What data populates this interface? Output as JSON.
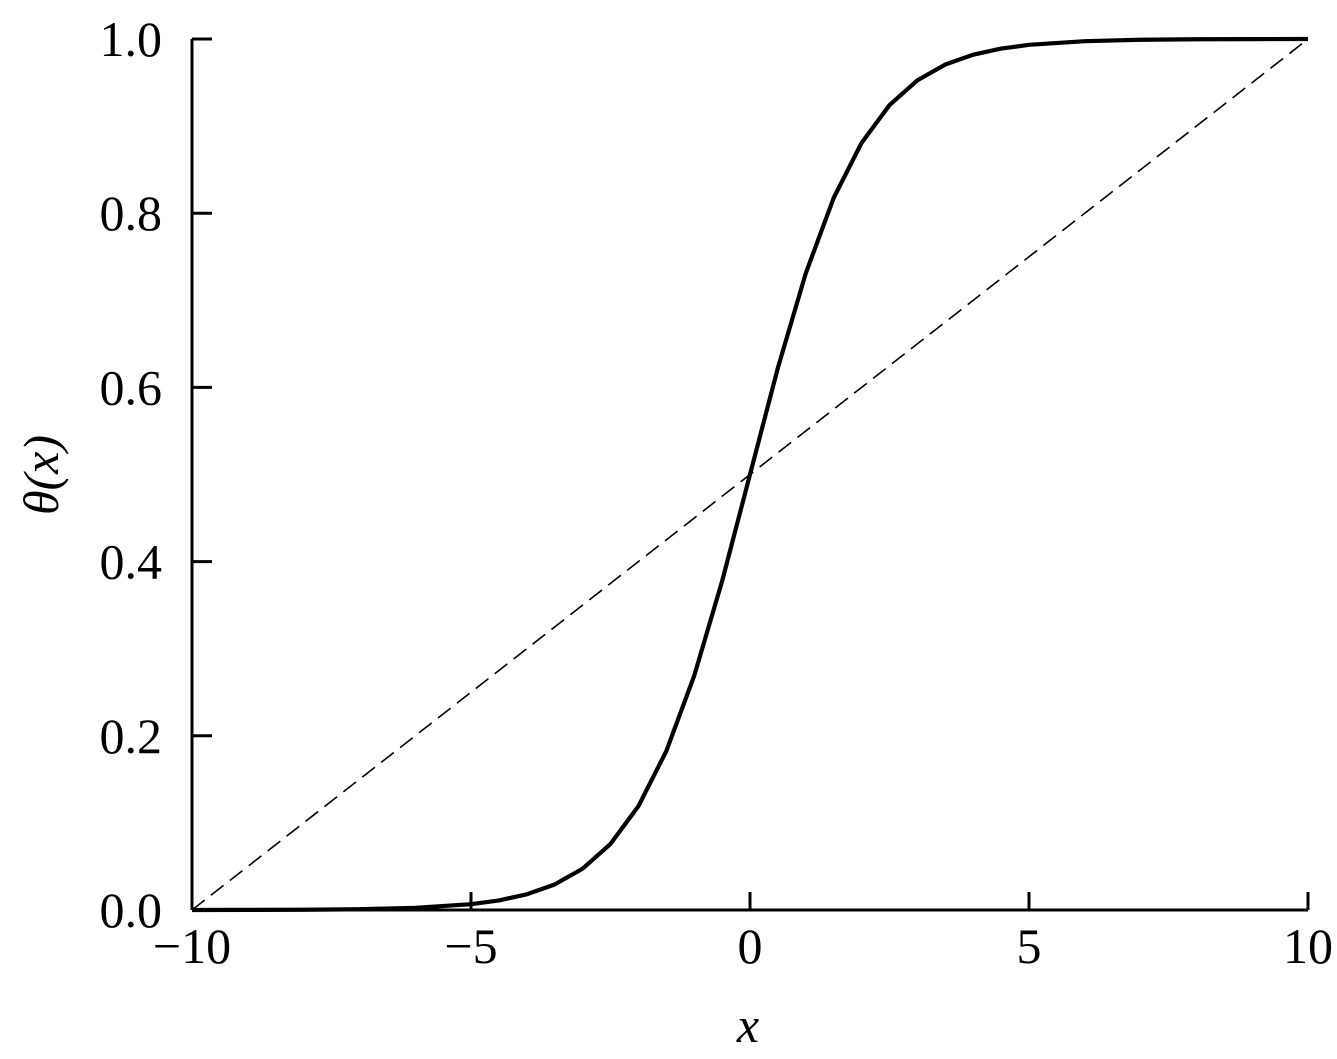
{
  "chart_data": {
    "type": "line",
    "xlabel": "x",
    "ylabel": "θ(x)",
    "xlim": [
      -10,
      10
    ],
    "ylim": [
      0,
      1
    ],
    "x_ticks": [
      -10,
      -5,
      0,
      5,
      10
    ],
    "x_tick_labels": [
      "−10",
      "−5",
      "0",
      "5",
      "10"
    ],
    "y_ticks": [
      0,
      0.2,
      0.4,
      0.6,
      0.8,
      1.0
    ],
    "y_tick_labels": [
      "0.0",
      "0.2",
      "0.4",
      "0.6",
      "0.8",
      "1.0"
    ],
    "grid": false,
    "series": [
      {
        "style": "solid",
        "color": "#000000",
        "x": [
          -10,
          -9,
          -8,
          -7,
          -6,
          -5,
          -4.5,
          -4,
          -3.5,
          -3,
          -2.5,
          -2,
          -1.5,
          -1,
          -0.5,
          0,
          0.5,
          1,
          1.5,
          2,
          2.5,
          3,
          3.5,
          4,
          4.5,
          5,
          6,
          7,
          8,
          9,
          10
        ],
        "y": [
          0.0,
          0.0001,
          0.0003,
          0.0009,
          0.0025,
          0.0067,
          0.011,
          0.018,
          0.0293,
          0.0474,
          0.0759,
          0.1192,
          0.1824,
          0.2689,
          0.3775,
          0.5,
          0.6225,
          0.7311,
          0.8176,
          0.8808,
          0.9241,
          0.9526,
          0.9707,
          0.982,
          0.989,
          0.9933,
          0.9975,
          0.9991,
          0.9997,
          0.9999,
          1.0
        ]
      },
      {
        "style": "dashed",
        "color": "#000000",
        "x": [
          -10,
          10
        ],
        "y": [
          0,
          1
        ]
      }
    ]
  }
}
